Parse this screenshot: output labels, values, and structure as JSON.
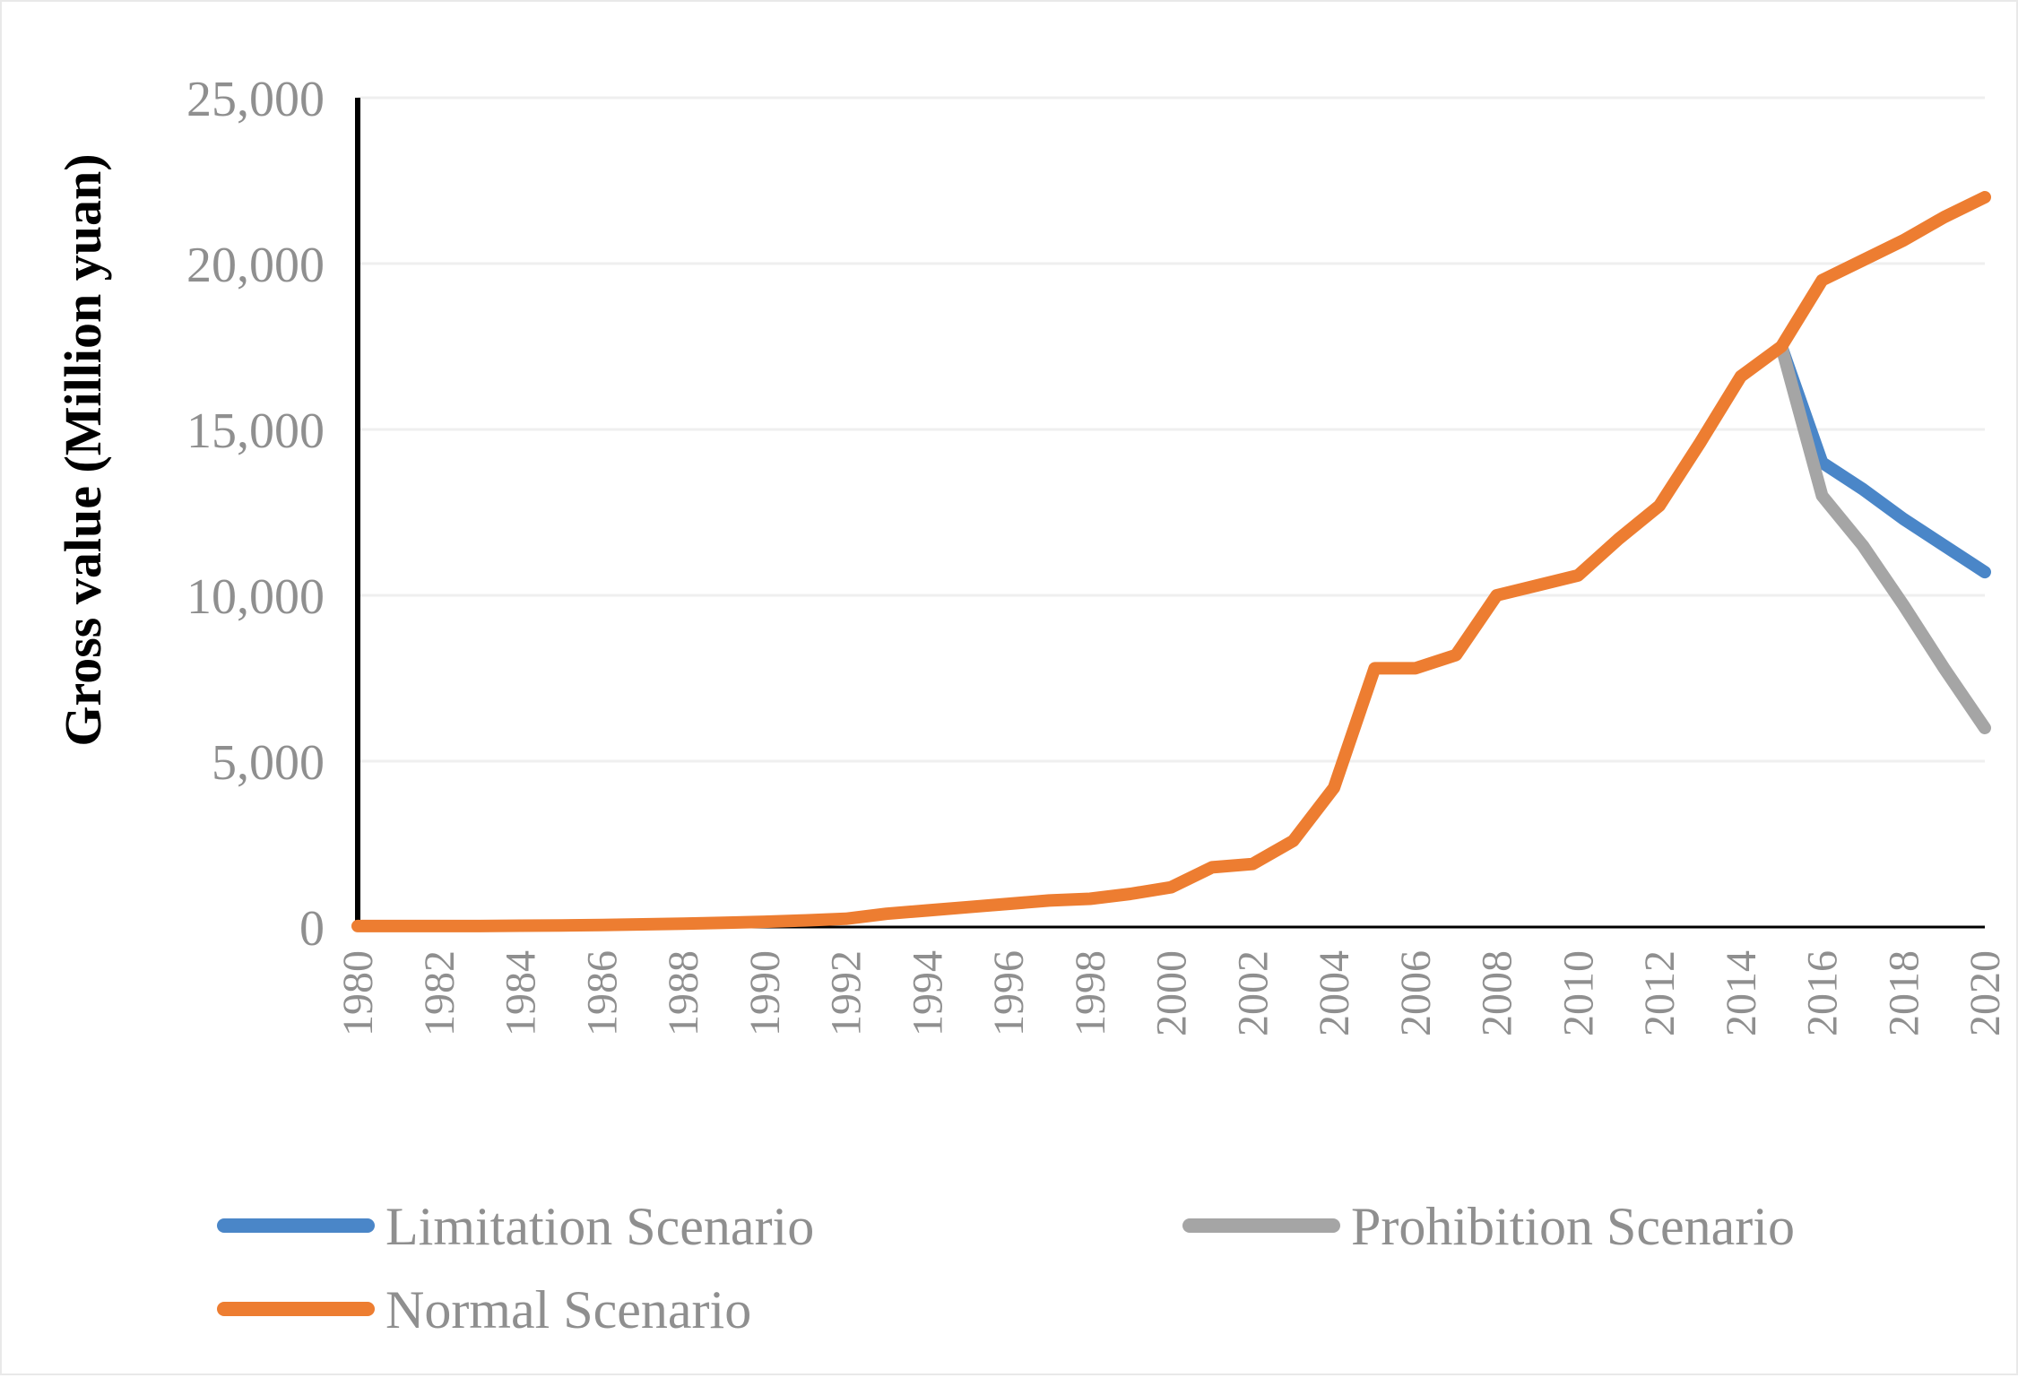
{
  "chart_data": {
    "type": "line",
    "title": "",
    "xlabel": "",
    "ylabel": "Gross value (Million yuan)",
    "x": [
      1980,
      1981,
      1982,
      1983,
      1984,
      1985,
      1986,
      1987,
      1988,
      1989,
      1990,
      1991,
      1992,
      1993,
      1994,
      1995,
      1996,
      1997,
      1998,
      1999,
      2000,
      2001,
      2002,
      2003,
      2004,
      2005,
      2006,
      2007,
      2008,
      2009,
      2010,
      2011,
      2012,
      2013,
      2014,
      2015,
      2016,
      2017,
      2018,
      2019,
      2020
    ],
    "x_tick_labels": [
      "1980",
      "1982",
      "1984",
      "1986",
      "1988",
      "1990",
      "1992",
      "1994",
      "1996",
      "1998",
      "2000",
      "2002",
      "2004",
      "2006",
      "2008",
      "2010",
      "2012",
      "2014",
      "2016",
      "2018",
      "2020"
    ],
    "ylim": [
      0,
      25000
    ],
    "y_ticks": [
      0,
      5000,
      10000,
      15000,
      20000,
      25000
    ],
    "y_tick_labels": [
      "0",
      "5,000",
      "10,000",
      "15,000",
      "20,000",
      "25,000"
    ],
    "grid": "horizontal",
    "legend_position": "bottom",
    "series": [
      {
        "name": "Limitation Scenario",
        "color": "#4a86c8",
        "x": [
          2015,
          2016,
          2017,
          2018,
          2019,
          2020
        ],
        "values": [
          17500,
          14000,
          13200,
          12300,
          11500,
          10700
        ]
      },
      {
        "name": "Prohibition Scenario",
        "color": "#a5a5a5",
        "x": [
          2015,
          2016,
          2017,
          2018,
          2019,
          2020
        ],
        "values": [
          17500,
          13000,
          11500,
          9700,
          7800,
          6000
        ]
      },
      {
        "name": "Normal Scenario",
        "color": "#ed7d31",
        "x": [
          1980,
          1981,
          1982,
          1983,
          1984,
          1985,
          1986,
          1987,
          1988,
          1989,
          1990,
          1991,
          1992,
          1993,
          1994,
          1995,
          1996,
          1997,
          1998,
          1999,
          2000,
          2001,
          2002,
          2003,
          2004,
          2005,
          2006,
          2007,
          2008,
          2009,
          2010,
          2011,
          2012,
          2013,
          2014,
          2015,
          2016,
          2017,
          2018,
          2019,
          2020
        ],
        "values": [
          30,
          30,
          30,
          30,
          40,
          50,
          60,
          80,
          100,
          130,
          160,
          200,
          250,
          400,
          500,
          600,
          700,
          800,
          850,
          1000,
          1200,
          1800,
          1900,
          2600,
          4200,
          7800,
          7800,
          8200,
          10000,
          10300,
          10600,
          11700,
          12700,
          14600,
          16600,
          17500,
          19500,
          20100,
          20700,
          21400,
          22000
        ]
      }
    ]
  }
}
